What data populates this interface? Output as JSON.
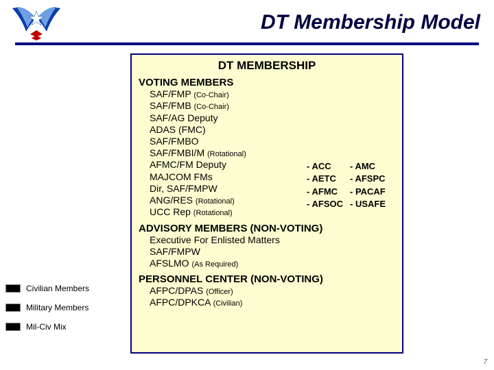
{
  "title": "DT Membership Model",
  "panel": {
    "heading": "DT MEMBERSHIP",
    "voting": {
      "heading": "VOTING MEMBERS",
      "items": [
        {
          "label": "SAF/FMP",
          "paren": "(Co-Chair)"
        },
        {
          "label": "SAF/FMB",
          "paren": "(Co-Chair)"
        },
        {
          "label": "SAF/AG Deputy"
        },
        {
          "label": "ADAS (FMC)"
        },
        {
          "label": "SAF/FMBO"
        },
        {
          "label": "SAF/FMBI/M",
          "paren": "(Rotational)"
        },
        {
          "label": "AFMC/FM Deputy"
        },
        {
          "label": "MAJCOM FMs"
        },
        {
          "label": "Dir, SAF/FMPW"
        },
        {
          "label": "ANG/RES",
          "paren": "(Rotational)"
        },
        {
          "label": "UCC Rep",
          "paren": "(Rotational)"
        }
      ],
      "majcoms": {
        "col1": [
          "- ACC",
          "- AETC",
          "- AFMC",
          "- AFSOC"
        ],
        "col2": [
          "- AMC",
          "- AFSPC",
          "- PACAF",
          "- USAFE"
        ]
      }
    },
    "advisory": {
      "heading": "ADVISORY MEMBERS (NON-VOTING)",
      "items": [
        {
          "label": "Executive For Enlisted Matters"
        },
        {
          "label": "SAF/FMPW"
        },
        {
          "label": "AFSLMO",
          "paren": "(As Required)"
        }
      ]
    },
    "personnel": {
      "heading": "PERSONNEL CENTER (NON-VOTING)",
      "items": [
        {
          "label": "AFPC/DPAS",
          "paren": "(Officer)"
        },
        {
          "label": "AFPC/DPKCA",
          "paren": "(Civilian)"
        }
      ]
    }
  },
  "legend": [
    {
      "label": "Civilian Members",
      "color": "#000000"
    },
    {
      "label": "Military Members",
      "color": "#000000"
    },
    {
      "label": "Mil-Civ Mix",
      "color": "#000000"
    }
  ],
  "page_number": "7",
  "colors": {
    "accent": "#000080",
    "panel_bg": "#fdfdd1"
  },
  "logo_colors": {
    "wing": "#0a3fa8",
    "wing_light": "#6fa0e6",
    "star": "#ffffff",
    "chevron": "#c00000"
  }
}
